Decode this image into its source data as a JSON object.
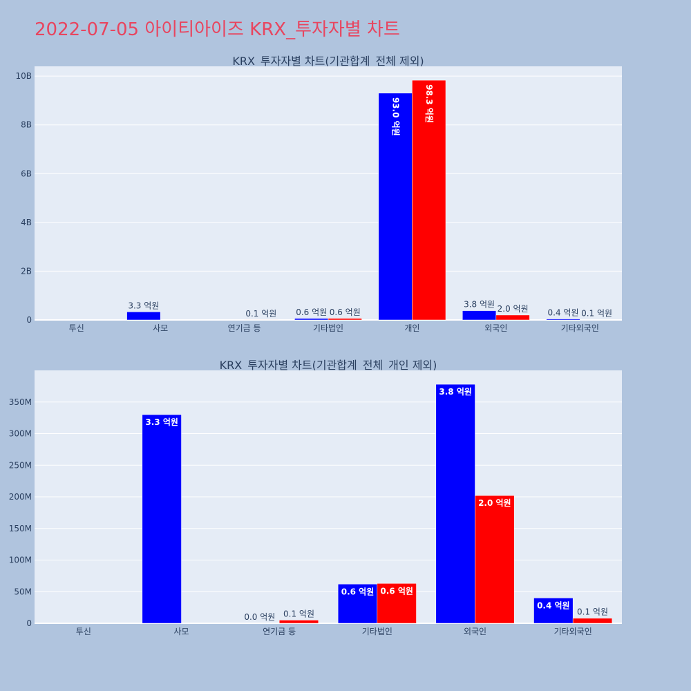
{
  "title": "2022-07-05 아이티아이즈 KRX_투자자별 차트",
  "colors": {
    "title": "#e8455f",
    "background": "#b0c4de",
    "plot_bg": "#e5ecf6",
    "series_a": "#0000ff",
    "series_b": "#ff0000",
    "text": "#2a3f5f"
  },
  "chart_data": [
    {
      "type": "bar",
      "title": "KRX_투자자별 차트(기관합계_전체 제외)",
      "categories": [
        "투신",
        "사모",
        "연기금 등",
        "기타법인",
        "개인",
        "외국인",
        "기타외국인"
      ],
      "ylim": [
        0,
        10400000000
      ],
      "yticks": [
        0,
        2000000000,
        4000000000,
        6000000000,
        8000000000,
        10000000000
      ],
      "ytick_labels": [
        "0",
        "2B",
        "4B",
        "6B",
        "8B",
        "10B"
      ],
      "grid": true,
      "series": [
        {
          "color": "#0000ff",
          "values": [
            0,
            330000000,
            0,
            60000000,
            9300000000,
            380000000,
            40000000
          ],
          "labels": [
            "",
            "3.3 억원",
            "",
            "0.6 억원",
            "93.0 억원",
            "3.8 억원",
            "0.4 억원"
          ]
        },
        {
          "color": "#ff0000",
          "values": [
            0,
            0,
            5000000,
            62000000,
            9830000000,
            200000000,
            8000000
          ],
          "labels": [
            "",
            "",
            "0.1 억원",
            "0.6 억원",
            "98.3 억원",
            "2.0 억원",
            "0.1 억원"
          ]
        }
      ]
    },
    {
      "type": "bar",
      "title": "KRX_투자자별 차트(기관합계_전체_개인 제외)",
      "categories": [
        "투신",
        "사모",
        "연기금 등",
        "기타법인",
        "외국인",
        "기타외국인"
      ],
      "ylim": [
        0,
        400000000
      ],
      "yticks": [
        0,
        50000000,
        100000000,
        150000000,
        200000000,
        250000000,
        300000000,
        350000000
      ],
      "ytick_labels": [
        "0",
        "50M",
        "100M",
        "150M",
        "200M",
        "250M",
        "300M",
        "350M"
      ],
      "grid": true,
      "series": [
        {
          "color": "#0000ff",
          "values": [
            0,
            330000000,
            0,
            62000000,
            378000000,
            40000000
          ],
          "labels": [
            "",
            "3.3 억원",
            "0.0 억원",
            "0.6 억원",
            "3.8 억원",
            "0.4 억원"
          ]
        },
        {
          "color": "#ff0000",
          "values": [
            0,
            0,
            5000000,
            63000000,
            202000000,
            8000000
          ],
          "labels": [
            "",
            "",
            "0.1 억원",
            "0.6 억원",
            "2.0 억원",
            "0.1 억원"
          ]
        }
      ]
    }
  ]
}
